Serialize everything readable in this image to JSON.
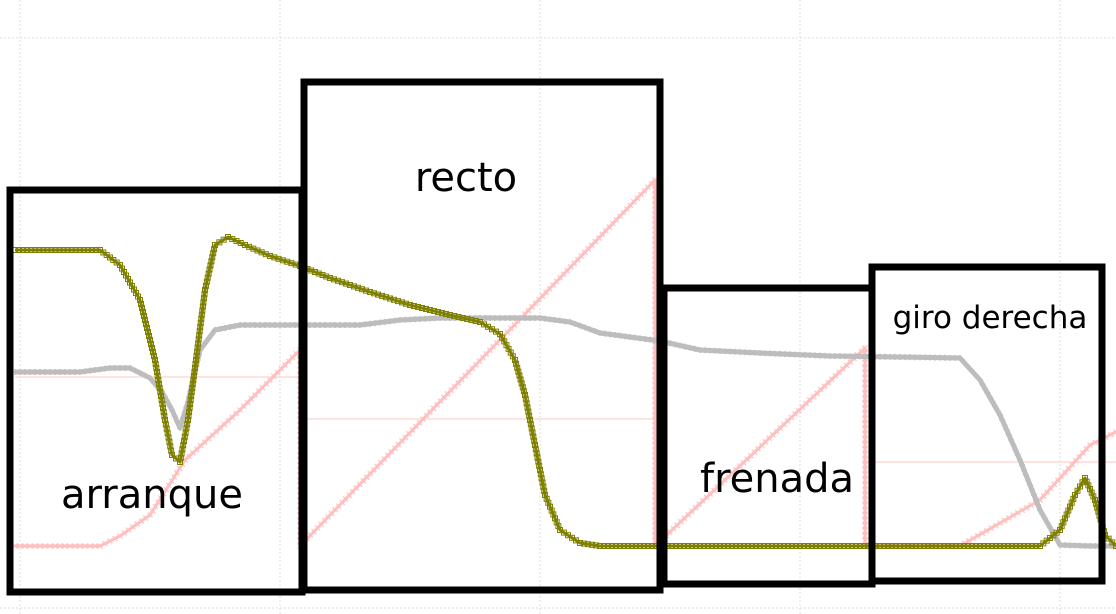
{
  "chart_data": {
    "type": "line",
    "grid": true,
    "colors": {
      "olive": "#7f7f00",
      "gray": "#bdbdbd",
      "pink": "#ffbfbf",
      "pink_light": "#ffd9d9",
      "box": "#000000"
    },
    "segments": [
      {
        "label": "arranque",
        "x_range": [
          0,
          300
        ]
      },
      {
        "label": "recto",
        "x_range": [
          300,
          660
        ]
      },
      {
        "label": "frenada",
        "x_range": [
          660,
          870
        ]
      },
      {
        "label": "giro derecha",
        "x_range": [
          870,
          1116
        ]
      }
    ],
    "series": [
      {
        "color_key": "olive",
        "marker": "square",
        "points": [
          [
            15,
            250
          ],
          [
            100,
            250
          ],
          [
            120,
            265
          ],
          [
            140,
            300
          ],
          [
            155,
            360
          ],
          [
            165,
            420
          ],
          [
            172,
            455
          ],
          [
            180,
            462
          ],
          [
            188,
            420
          ],
          [
            196,
            360
          ],
          [
            205,
            290
          ],
          [
            215,
            245
          ],
          [
            228,
            237
          ],
          [
            245,
            245
          ],
          [
            270,
            256
          ],
          [
            300,
            266
          ],
          [
            330,
            278
          ],
          [
            370,
            292
          ],
          [
            410,
            305
          ],
          [
            450,
            315
          ],
          [
            480,
            322
          ],
          [
            500,
            334
          ],
          [
            515,
            360
          ],
          [
            525,
            395
          ],
          [
            535,
            445
          ],
          [
            545,
            495
          ],
          [
            560,
            530
          ],
          [
            580,
            543
          ],
          [
            600,
            546
          ],
          [
            1040,
            546
          ],
          [
            1060,
            530
          ],
          [
            1075,
            495
          ],
          [
            1085,
            478
          ],
          [
            1095,
            500
          ],
          [
            1105,
            535
          ],
          [
            1116,
            546
          ]
        ]
      },
      {
        "color_key": "gray",
        "marker": "cross",
        "points": [
          [
            15,
            372
          ],
          [
            80,
            372
          ],
          [
            110,
            368
          ],
          [
            130,
            368
          ],
          [
            150,
            378
          ],
          [
            162,
            392
          ],
          [
            172,
            410
          ],
          [
            180,
            428
          ],
          [
            188,
            402
          ],
          [
            200,
            350
          ],
          [
            215,
            330
          ],
          [
            240,
            325
          ],
          [
            300,
            325
          ],
          [
            360,
            325
          ],
          [
            400,
            320
          ],
          [
            440,
            318
          ],
          [
            480,
            318
          ],
          [
            540,
            318
          ],
          [
            570,
            322
          ],
          [
            600,
            333
          ],
          [
            660,
            341
          ],
          [
            700,
            350
          ],
          [
            760,
            353
          ],
          [
            830,
            356
          ],
          [
            900,
            357
          ],
          [
            960,
            358
          ],
          [
            980,
            380
          ],
          [
            1000,
            415
          ],
          [
            1020,
            460
          ],
          [
            1040,
            510
          ],
          [
            1060,
            545
          ],
          [
            1090,
            546
          ],
          [
            1116,
            546
          ]
        ]
      },
      {
        "color_key": "pink",
        "marker": "x",
        "points": [
          [
            15,
            546
          ],
          [
            100,
            546
          ],
          [
            120,
            536
          ],
          [
            150,
            515
          ],
          [
            185,
            460
          ],
          [
            240,
            410
          ],
          [
            300,
            350
          ],
          [
            300,
            546
          ],
          [
            655,
            180
          ],
          [
            655,
            546
          ],
          [
            865,
            348
          ],
          [
            865,
            546
          ],
          [
            960,
            546
          ],
          [
            1040,
            500
          ],
          [
            1090,
            445
          ],
          [
            1116,
            432
          ]
        ]
      }
    ],
    "reference_lines": [
      {
        "color_key": "pink_light",
        "x": [
          15,
          300
        ],
        "y": 377
      },
      {
        "color_key": "pink_light",
        "x": [
          300,
          655
        ],
        "y": 419
      },
      {
        "color_key": "pink_light",
        "x": [
          865,
          1116
        ],
        "y": 462
      }
    ]
  }
}
